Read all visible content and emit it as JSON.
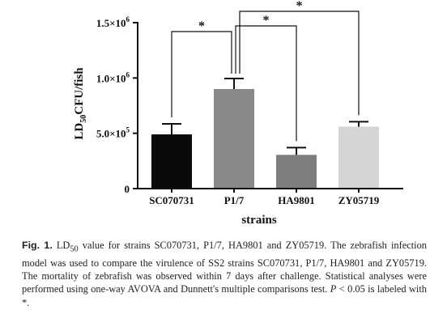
{
  "chart_data": {
    "type": "bar",
    "categories": [
      "SC070731",
      "P1/7",
      "HA9801",
      "ZY05719"
    ],
    "values": [
      490000,
      900000,
      305000,
      560000
    ],
    "errors": [
      95000,
      95000,
      65000,
      45000
    ],
    "colors": [
      "#0a0a0a",
      "#888888",
      "#7d7d7d",
      "#d5d5d5"
    ],
    "xlabel": "strains",
    "ylabel_main": "LD",
    "ylabel_sub": "50",
    "ylabel_rest": "CFU/fish",
    "ylim": [
      0,
      1500000
    ],
    "yticks": [
      {
        "value": 0,
        "label": "0",
        "exp": ""
      },
      {
        "value": 500000,
        "label": "5.0×10",
        "exp": "5"
      },
      {
        "value": 1000000,
        "label": "1.0×10",
        "exp": "6"
      },
      {
        "value": 1500000,
        "label": "1.5×10",
        "exp": "6"
      }
    ],
    "significance": [
      {
        "from": 0,
        "to": 1,
        "label": "*"
      },
      {
        "from": 1,
        "to": 2,
        "label": "*"
      },
      {
        "from": 1,
        "to": 3,
        "label": "*"
      }
    ]
  },
  "caption": {
    "fig_label": "Fig. 1.",
    "p1": " LD",
    "p1_sub": "50",
    "p2": " value for strains SC070731, P1/7, HA9801 and ZY05719. The zebrafish infection model was used to compare the virulence of SS2 strains SC070731, P1/7, HA9801 and ZY05719. The mortality of zebrafish was observed within 7 days after challenge. Statistical analyses were performed using one-way AVOVA and Dunnett's multiple comparisons test. ",
    "p_italic": "P",
    "p3": " < 0.05 is labeled with *."
  }
}
